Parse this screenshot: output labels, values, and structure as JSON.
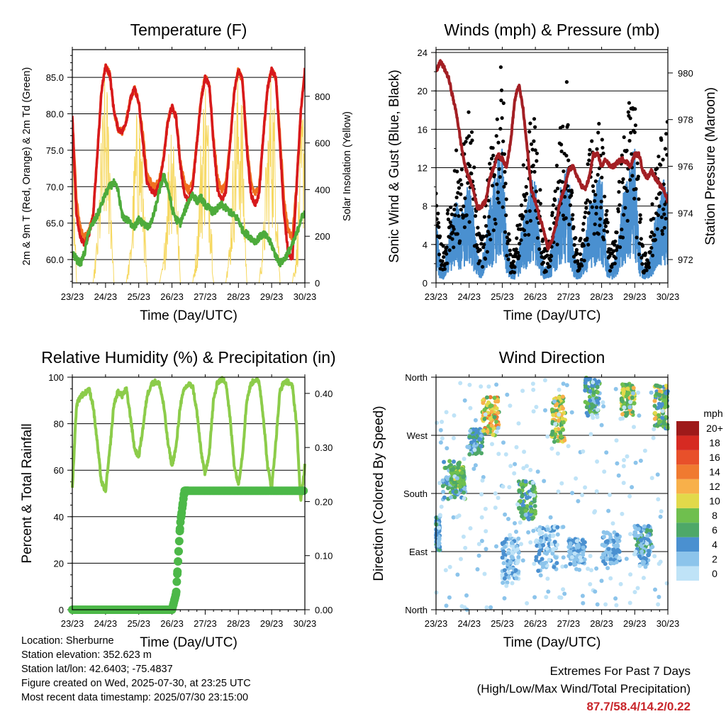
{
  "colors": {
    "t2m": "#d7191c",
    "t9m": "#f07020",
    "td": "#4dab3b",
    "solar": "#f6d860",
    "wind": "#4a90d0",
    "gust": "#000000",
    "pressure": "#a31f24",
    "rh": "#8ccc4a",
    "precip": "#4cb848",
    "extreme_text": "#c8262b"
  },
  "chart_data": [
    {
      "type": "line",
      "title": "Temperature (F)",
      "xlabel": "Time (Day/UTC)",
      "ylabel": "2m & 9m T (Red, Orange) & 2m Td (Green)",
      "ylabel_right": "Solar Insolation (Yellow)",
      "x_ticks": [
        "23/23",
        "24/23",
        "25/23",
        "26/23",
        "27/23",
        "28/23",
        "29/23",
        "30/23"
      ],
      "y_ticks": [
        60.0,
        65.0,
        70.0,
        75.0,
        80.0,
        85.0
      ],
      "y_tick_labels": [
        "60.0",
        "65.0",
        "70.0",
        "75.0",
        "80.0",
        "85.0"
      ],
      "ylim": [
        56.8,
        88.8
      ],
      "y2_ticks": [
        0,
        200,
        400,
        600,
        800
      ],
      "y2lim": [
        0,
        1000
      ],
      "x_days": [
        0,
        0.125,
        0.25,
        0.375,
        0.5,
        0.625,
        0.75,
        0.875,
        1,
        1.125,
        1.25,
        1.375,
        1.5,
        1.625,
        1.75,
        1.875,
        2,
        2.125,
        2.25,
        2.375,
        2.5,
        2.625,
        2.75,
        2.875,
        3,
        3.125,
        3.25,
        3.375,
        3.5,
        3.625,
        3.75,
        3.875,
        4,
        4.125,
        4.25,
        4.375,
        4.5,
        4.625,
        4.75,
        4.875,
        5,
        5.125,
        5.25,
        5.375,
        5.5,
        5.625,
        5.75,
        5.875,
        6,
        6.125,
        6.25,
        6.375,
        6.5,
        6.625,
        6.75,
        6.875,
        7
      ],
      "series": [
        {
          "name": "Solar Insolation",
          "axis": "right",
          "values": [
            650,
            0,
            0,
            0,
            0,
            0,
            200,
            600,
            880,
            650,
            0,
            0,
            0,
            0,
            150,
            550,
            820,
            500,
            0,
            0,
            0,
            0,
            100,
            500,
            800,
            550,
            0,
            0,
            0,
            0,
            180,
            620,
            880,
            600,
            0,
            0,
            0,
            0,
            200,
            650,
            880,
            700,
            0,
            0,
            0,
            0,
            220,
            660,
            880,
            650,
            0,
            0,
            0,
            0,
            150,
            600,
            880
          ]
        },
        {
          "name": "9m T",
          "axis": "left",
          "values": [
            79.5,
            68,
            64,
            63,
            64,
            66,
            74,
            83,
            86.5,
            85.5,
            80.5,
            78,
            77.5,
            79,
            82,
            83.5,
            81.5,
            77,
            71.5,
            70.5,
            70,
            71,
            74,
            79,
            81,
            79.5,
            73.5,
            70.5,
            69.5,
            71,
            76,
            82,
            85,
            84,
            76.5,
            71,
            69.5,
            70.5,
            76,
            83,
            86,
            84.5,
            76,
            70.5,
            69,
            70,
            77,
            83.5,
            86,
            85,
            77,
            68,
            64,
            63,
            70,
            80,
            86
          ]
        },
        {
          "name": "2m T",
          "axis": "left",
          "values": [
            79.5,
            66,
            63,
            62,
            63.5,
            66,
            74,
            83,
            86.5,
            85.5,
            80.5,
            78,
            77.5,
            79,
            82,
            83.5,
            81.5,
            76,
            70.5,
            69.5,
            69,
            70.5,
            74,
            79,
            81,
            79.5,
            73,
            69,
            68,
            70,
            76,
            82,
            85,
            84,
            76,
            69.5,
            68,
            69.5,
            76,
            83,
            86,
            84.5,
            75.5,
            69,
            67.5,
            69,
            77,
            83.5,
            86,
            85,
            76,
            66,
            61,
            60,
            70,
            80,
            86
          ]
        },
        {
          "name": "2m Td",
          "axis": "left",
          "values": [
            61,
            60,
            59.5,
            61,
            64,
            65,
            66,
            67.5,
            69,
            70,
            70.5,
            69.5,
            66,
            65.5,
            65,
            64.5,
            65.5,
            65,
            64.5,
            65,
            67,
            69.5,
            71.5,
            70,
            67,
            65.5,
            65,
            66.5,
            68,
            69,
            68,
            68.5,
            67.5,
            67,
            66.5,
            67,
            67.5,
            67,
            66.5,
            66,
            65.5,
            64,
            63.5,
            63,
            62.5,
            63,
            63.5,
            63,
            62,
            60.5,
            59.5,
            60,
            61,
            62,
            63.5,
            65.5,
            66.5
          ]
        }
      ]
    },
    {
      "type": "line",
      "title": "Winds (mph) & Pressure (mb)",
      "xlabel": "Time (Day/UTC)",
      "ylabel": "Sonic Wind & Gust (Blue, Black)",
      "ylabel_right": "Station Pressure (Maroon)",
      "x_ticks": [
        "23/23",
        "24/23",
        "25/23",
        "26/23",
        "27/23",
        "28/23",
        "29/23",
        "30/23"
      ],
      "y_ticks": [
        0,
        4,
        8,
        12,
        16,
        20,
        24
      ],
      "ylim": [
        0,
        24.3
      ],
      "y2_ticks": [
        972,
        974,
        976,
        978,
        980
      ],
      "y2lim": [
        971,
        981
      ],
      "x_days": [
        0,
        0.125,
        0.25,
        0.375,
        0.5,
        0.625,
        0.75,
        0.875,
        1,
        1.125,
        1.25,
        1.375,
        1.5,
        1.625,
        1.75,
        1.875,
        2,
        2.125,
        2.25,
        2.375,
        2.5,
        2.625,
        2.75,
        2.875,
        3,
        3.125,
        3.25,
        3.375,
        3.5,
        3.625,
        3.75,
        3.875,
        4,
        4.125,
        4.25,
        4.375,
        4.5,
        4.625,
        4.75,
        4.875,
        5,
        5.125,
        5.25,
        5.375,
        5.5,
        5.625,
        5.75,
        5.875,
        6,
        6.125,
        6.25,
        6.375,
        6.5,
        6.625,
        6.75,
        6.875,
        7
      ],
      "series": [
        {
          "name": "Sonic Wind",
          "values": [
            6,
            2,
            1.5,
            4,
            6,
            7.5,
            6,
            7.5,
            9,
            6.5,
            2.5,
            2,
            4,
            7,
            9,
            11,
            12,
            4.5,
            1.5,
            1.5,
            3,
            5.5,
            7,
            9,
            9.5,
            4.5,
            1.5,
            1.5,
            3.5,
            6,
            8.5,
            10,
            10.5,
            3.5,
            1.5,
            2,
            4,
            7,
            8,
            9,
            9.5,
            4,
            1.5,
            2,
            4,
            7.5,
            9,
            11,
            12,
            4,
            1.5,
            1.5,
            3,
            6,
            7.5,
            9,
            8.5
          ]
        },
        {
          "name": "Gust",
          "values": [
            8,
            4,
            3,
            7,
            9,
            12,
            11,
            13,
            16,
            12,
            5,
            4,
            7,
            11,
            14,
            18,
            20,
            8,
            3,
            3,
            6,
            10,
            12,
            15,
            16,
            9,
            3,
            3,
            7,
            10,
            14,
            17,
            18,
            7,
            3,
            4,
            7,
            12,
            13,
            14,
            15,
            8,
            3,
            4,
            8,
            12,
            15,
            17,
            18,
            8,
            3,
            3,
            6,
            10,
            13,
            15,
            14
          ]
        },
        {
          "name": "Station Pressure",
          "axis": "right",
          "values": [
            980,
            980.5,
            980.2,
            979.8,
            979,
            978.2,
            977,
            976,
            975.5,
            975,
            974.2,
            974.3,
            974.5,
            975.5,
            976,
            976.5,
            976.3,
            976,
            977,
            978.8,
            979.5,
            978.5,
            976.8,
            975,
            974.5,
            973.8,
            973.3,
            972.5,
            972.8,
            973.5,
            974.5,
            975,
            975.8,
            976,
            975.6,
            975.2,
            975,
            975.5,
            976.5,
            976.5,
            976,
            976.3,
            976,
            976,
            976.2,
            976.3,
            976.2,
            976,
            976.5,
            976.5,
            975.8,
            975.5,
            975.8,
            975.5,
            975.2,
            975,
            974.5
          ]
        }
      ]
    },
    {
      "type": "line",
      "title": "Relative Humidity (%) & Precipitation (in)",
      "xlabel": "Time (Day/UTC)",
      "ylabel": "Percent & Total Rainfall",
      "x_ticks": [
        "23/23",
        "24/23",
        "25/23",
        "26/23",
        "27/23",
        "28/23",
        "29/23",
        "30/23"
      ],
      "y_ticks": [
        0,
        20,
        40,
        60,
        80,
        100
      ],
      "ylim": [
        0,
        100
      ],
      "y2_ticks": [
        0.0,
        0.1,
        0.2,
        0.3,
        0.4
      ],
      "y2_tick_labels": [
        "0.00",
        "0.10",
        "0.20",
        "0.30",
        "0.40"
      ],
      "y2lim": [
        0,
        0.43
      ],
      "x_days": [
        0,
        0.125,
        0.25,
        0.375,
        0.5,
        0.625,
        0.75,
        0.875,
        1,
        1.125,
        1.25,
        1.375,
        1.5,
        1.625,
        1.75,
        1.875,
        2,
        2.125,
        2.25,
        2.375,
        2.5,
        2.625,
        2.75,
        2.875,
        3,
        3.125,
        3.25,
        3.375,
        3.5,
        3.625,
        3.75,
        3.875,
        4,
        4.125,
        4.25,
        4.375,
        4.5,
        4.625,
        4.75,
        4.875,
        5,
        5.125,
        5.25,
        5.375,
        5.5,
        5.625,
        5.75,
        5.875,
        6,
        6.125,
        6.25,
        6.375,
        6.5,
        6.625,
        6.75,
        6.875,
        7
      ],
      "series": [
        {
          "name": "Relative Humidity",
          "values": [
            52,
            88,
            92,
            93,
            95,
            88,
            72,
            55,
            51,
            68,
            88,
            94,
            92,
            95,
            83,
            69,
            66,
            78,
            92,
            97,
            98,
            97,
            88,
            72,
            62,
            70,
            88,
            95,
            97,
            96,
            85,
            68,
            58,
            68,
            90,
            98,
            99,
            98,
            82,
            62,
            54,
            67,
            90,
            97,
            99,
            98,
            83,
            62,
            52,
            72,
            94,
            98,
            98,
            96,
            80,
            46,
            62
          ]
        },
        {
          "name": "Total Precipitation",
          "axis": "right",
          "values": [
            0,
            0,
            0,
            0,
            0,
            0,
            0,
            0,
            0,
            0,
            0,
            0,
            0,
            0,
            0,
            0,
            0,
            0,
            0,
            0,
            0,
            0,
            0,
            0,
            0,
            0.03,
            0.16,
            0.22,
            0.22,
            0.22,
            0.22,
            0.22,
            0.22,
            0.22,
            0.22,
            0.22,
            0.22,
            0.22,
            0.22,
            0.22,
            0.22,
            0.22,
            0.22,
            0.22,
            0.22,
            0.22,
            0.22,
            0.22,
            0.22,
            0.22,
            0.22,
            0.22,
            0.22,
            0.22,
            0.22,
            0.22,
            0.22
          ]
        }
      ]
    },
    {
      "type": "scatter",
      "title": "Wind Direction",
      "xlabel": "Time (Day/UTC)",
      "ylabel": "Direction (Colored By Speed)",
      "x_ticks": [
        "23/23",
        "24/23",
        "25/23",
        "26/23",
        "27/23",
        "28/23",
        "29/23",
        "30/23"
      ],
      "y_ticks": [
        "North",
        "East",
        "South",
        "West",
        "North"
      ],
      "y_tick_values": [
        0,
        90,
        180,
        270,
        360
      ],
      "ylim": [
        0,
        360
      ],
      "colorbar": {
        "title": "mph",
        "labels": [
          "0",
          "2",
          "4",
          "6",
          "8",
          "10",
          "12",
          "14",
          "16",
          "18",
          "20+"
        ],
        "colors": [
          "#bfe3f7",
          "#8cc4eb",
          "#4a90d0",
          "#4ea868",
          "#6fbf4e",
          "#e2d94a",
          "#f8b04a",
          "#f07a30",
          "#e8502a",
          "#d62a22",
          "#9e1a1a"
        ]
      },
      "clusters": [
        {
          "x": [
            0,
            0.12
          ],
          "dir": [
            90,
            145
          ],
          "speed": [
            2,
            7
          ]
        },
        {
          "x": [
            0.2,
            0.9
          ],
          "dir": [
            170,
            230
          ],
          "speed": [
            2,
            9
          ]
        },
        {
          "x": [
            0.45,
            0.85
          ],
          "dir": [
            190,
            220
          ],
          "speed": [
            6,
            11
          ]
        },
        {
          "x": [
            1.0,
            1.4
          ],
          "dir": [
            240,
            280
          ],
          "speed": [
            3,
            8
          ]
        },
        {
          "x": [
            1.4,
            1.9
          ],
          "dir": [
            270,
            330
          ],
          "speed": [
            7,
            15
          ]
        },
        {
          "x": [
            2.0,
            2.5
          ],
          "dir": [
            40,
            110
          ],
          "speed": [
            1,
            5
          ]
        },
        {
          "x": [
            2.5,
            3.0
          ],
          "dir": [
            140,
            200
          ],
          "speed": [
            4,
            10
          ]
        },
        {
          "x": [
            3.0,
            3.7
          ],
          "dir": [
            60,
            130
          ],
          "speed": [
            1,
            6
          ]
        },
        {
          "x": [
            3.5,
            3.9
          ],
          "dir": [
            260,
            330
          ],
          "speed": [
            6,
            14
          ]
        },
        {
          "x": [
            4.0,
            4.5
          ],
          "dir": [
            70,
            110
          ],
          "speed": [
            2,
            6
          ]
        },
        {
          "x": [
            4.5,
            4.95
          ],
          "dir": [
            300,
            360
          ],
          "speed": [
            3,
            9
          ]
        },
        {
          "x": [
            5.0,
            5.55
          ],
          "dir": [
            70,
            120
          ],
          "speed": [
            2,
            6
          ]
        },
        {
          "x": [
            5.6,
            6.0
          ],
          "dir": [
            300,
            350
          ],
          "speed": [
            6,
            13
          ]
        },
        {
          "x": [
            6.0,
            6.5
          ],
          "dir": [
            70,
            130
          ],
          "speed": [
            2,
            7
          ]
        },
        {
          "x": [
            6.6,
            7.0
          ],
          "dir": [
            280,
            350
          ],
          "speed": [
            4,
            13
          ]
        },
        {
          "x": [
            0,
            7.0
          ],
          "dir": [
            0,
            360
          ],
          "speed": [
            0,
            3
          ]
        }
      ]
    }
  ],
  "station": {
    "location": "Location: Sherburne",
    "elevation": "Station elevation: 352.623 m",
    "latlon": "Station lat/lon: 42.6403; -75.4837",
    "created": "Figure created on Wed, 2025-07-30, at 23:25 UTC",
    "recent": "Most recent data timestamp: 2025/07/30 23:15:00"
  },
  "extremes": {
    "line1": "Extremes For Past 7 Days",
    "line2": "(High/Low/Max Wind/Total Precipitation)",
    "values": "87.7/58.4/14.2/0.22"
  }
}
